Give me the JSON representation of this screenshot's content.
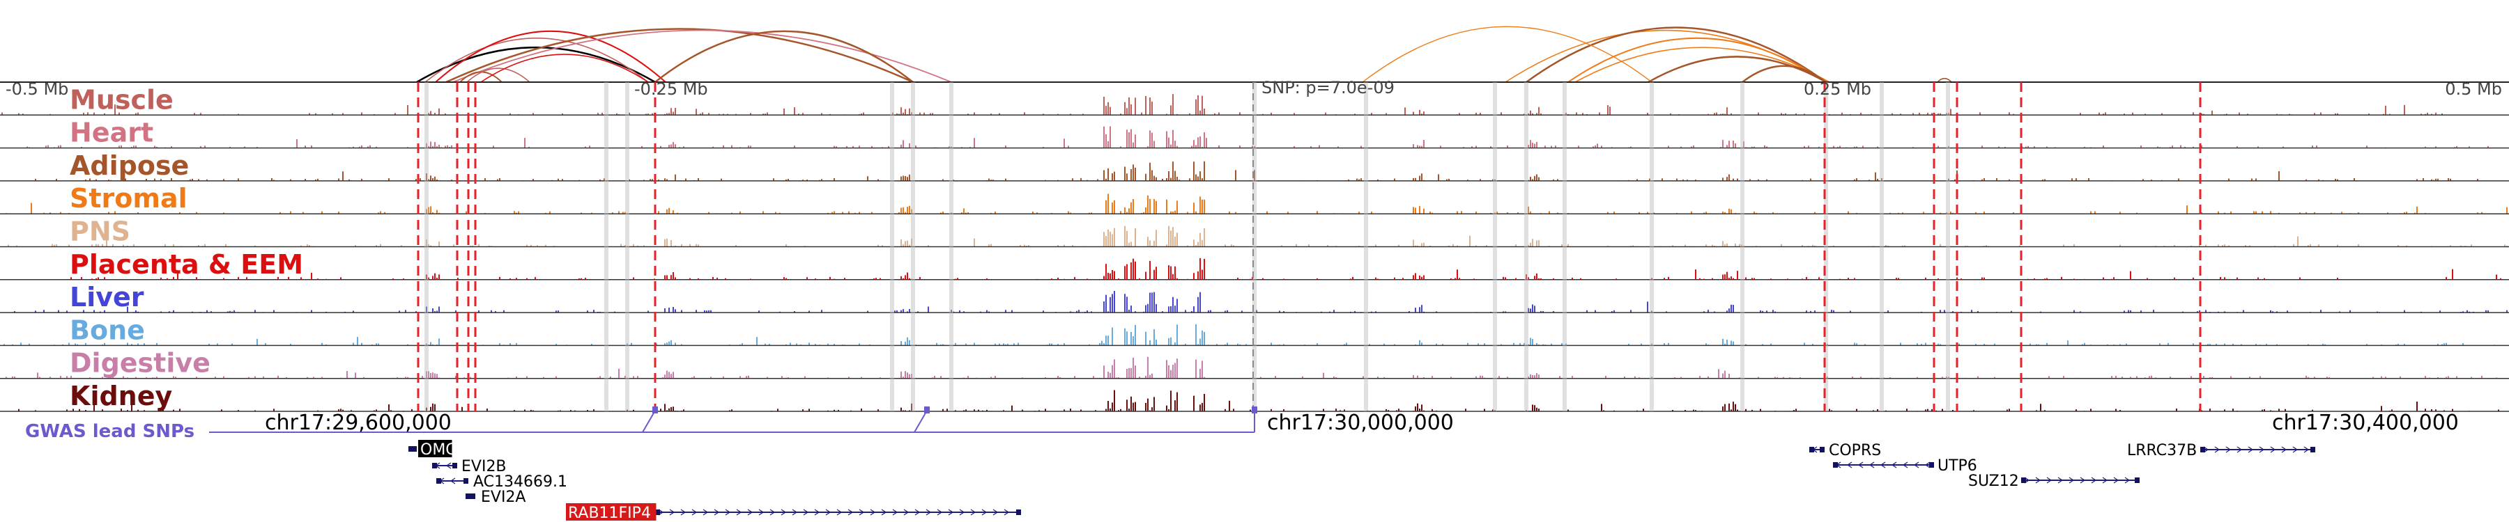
{
  "axis": {
    "scale_labels": [
      "-0.5 Mb",
      "-0.25 Mb",
      "0.25 Mb",
      "0.5 Mb"
    ],
    "snp_label": "SNP: p=7.0e-09"
  },
  "tracks": [
    {
      "name": "Muscle",
      "color": "#c0605a"
    },
    {
      "name": "Heart",
      "color": "#d27383"
    },
    {
      "name": "Adipose",
      "color": "#a5552a"
    },
    {
      "name": "Stromal",
      "color": "#f07b16"
    },
    {
      "name": "PNS",
      "color": "#dfb38f"
    },
    {
      "name": "Placenta & EEM",
      "color": "#dc0f10"
    },
    {
      "name": "Liver",
      "color": "#4444d6"
    },
    {
      "name": "Bone",
      "color": "#66aade"
    },
    {
      "name": "Digestive",
      "color": "#c77fa8"
    },
    {
      "name": "Kidney",
      "color": "#6b0d0d"
    }
  ],
  "gwas": {
    "label": "GWAS lead SNPs",
    "color": "#6a5acd"
  },
  "coordinates": [
    "chr17:29,600,000",
    "chr17:30,000,000",
    "chr17:30,400,000"
  ],
  "genes": [
    {
      "name": "OMG",
      "highlight": "black"
    },
    {
      "name": "EVI2B"
    },
    {
      "name": "AC134669.1"
    },
    {
      "name": "EVI2A"
    },
    {
      "name": "RAB11FIP4",
      "highlight": "red"
    },
    {
      "name": "COPRS"
    },
    {
      "name": "UTP6"
    },
    {
      "name": "SUZ12"
    },
    {
      "name": "LRRC37B"
    }
  ]
}
